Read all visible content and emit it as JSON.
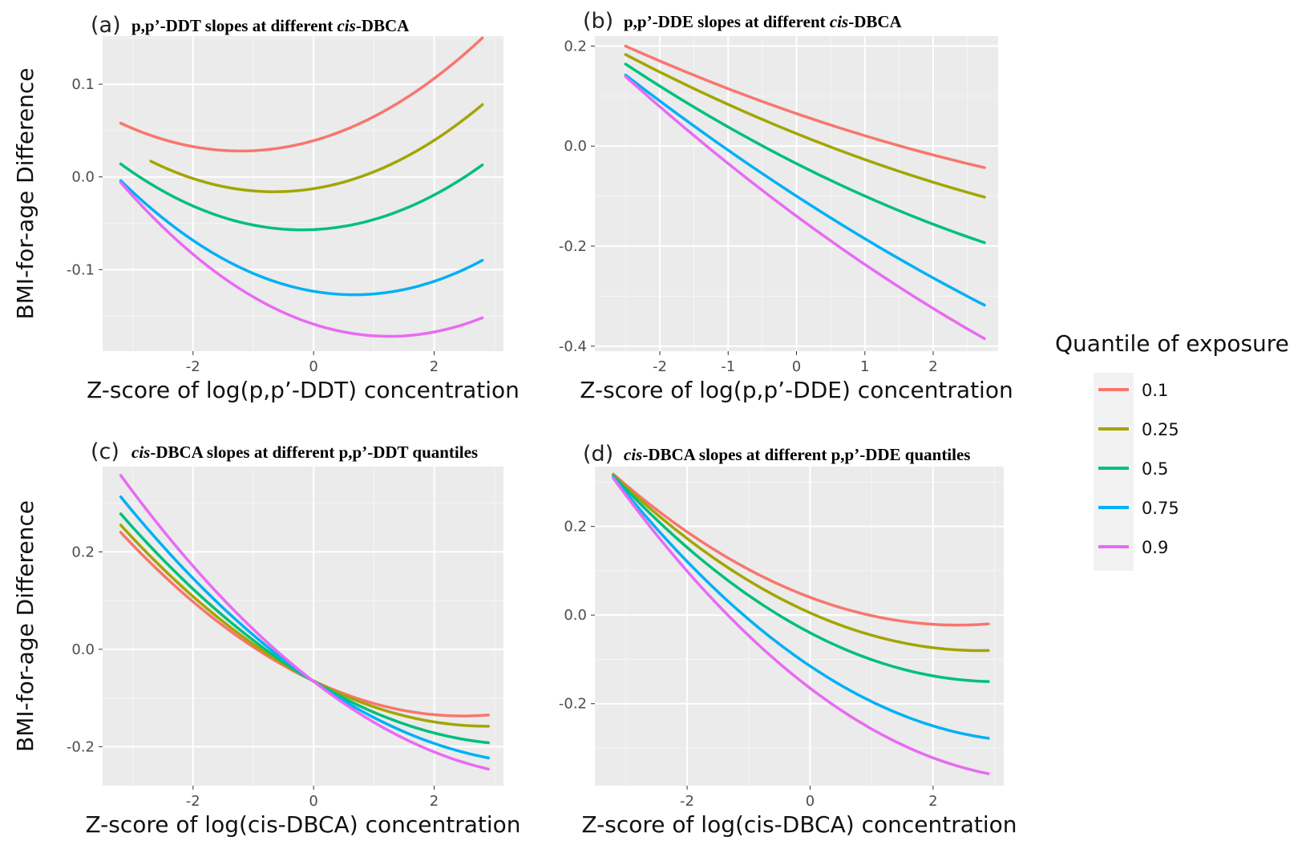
{
  "legend": {
    "title": "Quantile of exposure",
    "entries": [
      {
        "label": "0.1",
        "color": "#F8766D"
      },
      {
        "label": "0.25",
        "color": "#A3A500"
      },
      {
        "label": "0.5",
        "color": "#00BF7D"
      },
      {
        "label": "0.75",
        "color": "#00B0F6"
      },
      {
        "label": "0.9",
        "color": "#E76BF3"
      }
    ]
  },
  "shared_labels": {
    "ylabel": "BMI-for-age Difference"
  },
  "chart_data": [
    {
      "id": "a",
      "type": "line",
      "panel": "(a)",
      "title_parts": [
        {
          "text": "p,p’-DDT slopes at different ",
          "italic": false
        },
        {
          "text": "cis",
          "italic": true
        },
        {
          "text": "-DBCA",
          "italic": false
        }
      ],
      "xlabel": "Z-score of log(p,p’-DDT) concentration",
      "ylabel": "BMI-for-age Difference",
      "xlim": [
        -3.5,
        3.15
      ],
      "ylim": [
        -0.188,
        0.152
      ],
      "xticks": [
        {
          "v": -2,
          "t": "-2"
        },
        {
          "v": 0,
          "t": "0"
        },
        {
          "v": 2,
          "t": "2"
        }
      ],
      "yticks": [
        {
          "v": 0.1,
          "t": "0.1"
        },
        {
          "v": 0.0,
          "t": "0.0"
        },
        {
          "v": -0.1,
          "t": "-0.1"
        }
      ],
      "series": [
        {
          "label": "0.1",
          "x": [
            -3.2,
            -1.2,
            2.8
          ],
          "y": [
            0.058,
            0.028,
            0.15
          ]
        },
        {
          "label": "0.25",
          "x": [
            -2.7,
            -0.6,
            2.8
          ],
          "y": [
            0.017,
            -0.016,
            0.078
          ]
        },
        {
          "label": "0.5",
          "x": [
            -3.2,
            -0.3,
            2.8
          ],
          "y": [
            0.014,
            -0.057,
            0.013
          ]
        },
        {
          "label": "0.75",
          "x": [
            -3.2,
            0.8,
            2.8
          ],
          "y": [
            -0.004,
            -0.127,
            -0.09
          ]
        },
        {
          "label": "0.9",
          "x": [
            -3.2,
            1.2,
            2.8
          ],
          "y": [
            -0.006,
            -0.172,
            -0.152
          ]
        }
      ]
    },
    {
      "id": "b",
      "type": "line",
      "panel": "(b)",
      "title_parts": [
        {
          "text": "p,p’-DDE slopes at different ",
          "italic": false
        },
        {
          "text": "cis",
          "italic": true
        },
        {
          "text": "-DBCA",
          "italic": false
        }
      ],
      "xlabel": "Z-score of log(p,p’-DDE) concentration",
      "ylabel": "",
      "xlim": [
        -2.95,
        2.95
      ],
      "ylim": [
        -0.41,
        0.22
      ],
      "xticks": [
        {
          "v": -2,
          "t": "-2"
        },
        {
          "v": -1,
          "t": "-1"
        },
        {
          "v": 0,
          "t": "0"
        },
        {
          "v": 1,
          "t": "1"
        },
        {
          "v": 2,
          "t": "2"
        }
      ],
      "yticks": [
        {
          "v": 0.2,
          "t": "0.2"
        },
        {
          "v": 0.0,
          "t": "0.0"
        },
        {
          "v": -0.2,
          "t": "-0.2"
        },
        {
          "v": -0.4,
          "t": "-0.4"
        }
      ],
      "series": [
        {
          "label": "0.1",
          "x": [
            -2.5,
            0,
            2.75
          ],
          "y": [
            0.2,
            0.065,
            -0.043
          ]
        },
        {
          "label": "0.25",
          "x": [
            -2.5,
            0,
            2.75
          ],
          "y": [
            0.183,
            0.025,
            -0.102
          ]
        },
        {
          "label": "0.5",
          "x": [
            -2.5,
            0,
            2.75
          ],
          "y": [
            0.164,
            -0.035,
            -0.193
          ]
        },
        {
          "label": "0.75",
          "x": [
            -2.5,
            0,
            2.75
          ],
          "y": [
            0.142,
            -0.1,
            -0.318
          ]
        },
        {
          "label": "0.9",
          "x": [
            -2.5,
            0,
            2.75
          ],
          "y": [
            0.139,
            -0.14,
            -0.385
          ]
        }
      ]
    },
    {
      "id": "c",
      "type": "line",
      "panel": "(c)",
      "title_parts": [
        {
          "text": "cis",
          "italic": true
        },
        {
          "text": "-DBCA slopes at different p,p’-DDT quantiles",
          "italic": false
        }
      ],
      "xlabel": "Z-score of log(cis-DBCA) concentration",
      "ylabel": "BMI-for-age Difference",
      "xlim": [
        -3.5,
        3.15
      ],
      "ylim": [
        -0.28,
        0.375
      ],
      "xticks": [
        {
          "v": -2,
          "t": "-2"
        },
        {
          "v": 0,
          "t": "0"
        },
        {
          "v": 2,
          "t": "2"
        }
      ],
      "yticks": [
        {
          "v": 0.2,
          "t": "0.2"
        },
        {
          "v": 0.0,
          "t": "0.0"
        },
        {
          "v": -0.2,
          "t": "-0.2"
        }
      ],
      "series": [
        {
          "label": "0.1",
          "x": [
            -3.2,
            0,
            2.9
          ],
          "y": [
            0.24,
            -0.065,
            -0.135
          ]
        },
        {
          "label": "0.25",
          "x": [
            -3.2,
            0,
            2.9
          ],
          "y": [
            0.255,
            -0.065,
            -0.158
          ]
        },
        {
          "label": "0.5",
          "x": [
            -3.2,
            0,
            2.9
          ],
          "y": [
            0.278,
            -0.066,
            -0.192
          ]
        },
        {
          "label": "0.75",
          "x": [
            -3.2,
            0,
            2.9
          ],
          "y": [
            0.313,
            -0.066,
            -0.223
          ]
        },
        {
          "label": "0.9",
          "x": [
            -3.2,
            0,
            2.9
          ],
          "y": [
            0.357,
            -0.066,
            -0.246
          ]
        }
      ]
    },
    {
      "id": "d",
      "type": "line",
      "panel": "(d)",
      "title_parts": [
        {
          "text": "cis",
          "italic": true
        },
        {
          "text": "-DBCA slopes at different p,p’-DDE quantiles",
          "italic": false
        }
      ],
      "xlabel": "Z-score of log(cis-DBCA) concentration",
      "ylabel": "",
      "xlim": [
        -3.5,
        3.15
      ],
      "ylim": [
        -0.385,
        0.335
      ],
      "xticks": [
        {
          "v": -2,
          "t": "-2"
        },
        {
          "v": 0,
          "t": "0"
        },
        {
          "v": 2,
          "t": "2"
        }
      ],
      "yticks": [
        {
          "v": 0.2,
          "t": "0.2"
        },
        {
          "v": 0.0,
          "t": "0.0"
        },
        {
          "v": -0.2,
          "t": "-0.2"
        }
      ],
      "series": [
        {
          "label": "0.1",
          "x": [
            -3.2,
            0,
            2.9
          ],
          "y": [
            0.318,
            0.04,
            -0.02
          ]
        },
        {
          "label": "0.25",
          "x": [
            -3.2,
            0,
            2.9
          ],
          "y": [
            0.316,
            0.005,
            -0.08
          ]
        },
        {
          "label": "0.5",
          "x": [
            -3.2,
            0,
            2.9
          ],
          "y": [
            0.314,
            -0.04,
            -0.15
          ]
        },
        {
          "label": "0.75",
          "x": [
            -3.2,
            0,
            2.9
          ],
          "y": [
            0.311,
            -0.115,
            -0.278
          ]
        },
        {
          "label": "0.9",
          "x": [
            -3.2,
            0,
            2.9
          ],
          "y": [
            0.309,
            -0.165,
            -0.358
          ]
        }
      ]
    }
  ]
}
